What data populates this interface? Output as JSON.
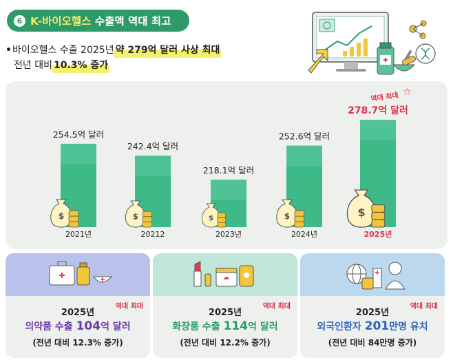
{
  "header": {
    "number": "6",
    "title_hl": "K-바이오헬스",
    "title_rest": " 수출액 역대 최고"
  },
  "bullet": {
    "dot": "•",
    "line1_plain": "바이오헬스 수출 2025년 ",
    "line1_hl": "약 279억 달러 사상 최대",
    "line2_plain": "전년 대비 ",
    "line2_hl": "10.3% 증가"
  },
  "chart_data": {
    "type": "bar",
    "categories": [
      "2021년",
      "20212",
      "2023년",
      "2024년",
      "2025년"
    ],
    "values": [
      254.5,
      242.4,
      218.1,
      252.6,
      278.7
    ],
    "data_labels": [
      "254.5억 달러",
      "242.4억 달러",
      "218.1억 달러",
      "252.6억 달러",
      "278.7억 달러"
    ],
    "highlight_index": 4,
    "highlight_badge": "역대 최대",
    "colors": {
      "bar": "#3dba88",
      "bar_top": "#5ccaa0",
      "highlight_text": "#e0304a"
    }
  },
  "cards": [
    {
      "year": "2025년",
      "main_pre": "의약품 수출 ",
      "main_big": "104",
      "main_post": "억 달러",
      "sub": "(전년 대비 12.3% 증가)",
      "badge": "역대 최대"
    },
    {
      "year": "2025년",
      "main_pre": "화장품 수출 ",
      "main_big": "114",
      "main_post": "억 달러",
      "sub": "(전년 대비 12.2% 증가)",
      "badge": "역대 최대"
    },
    {
      "year": "2025년",
      "main_pre": "외국인환자 ",
      "main_big": "201",
      "main_post": "만명 유치",
      "sub": "(전년 대비 84만명 증가)",
      "badge": "역대 최대"
    }
  ]
}
